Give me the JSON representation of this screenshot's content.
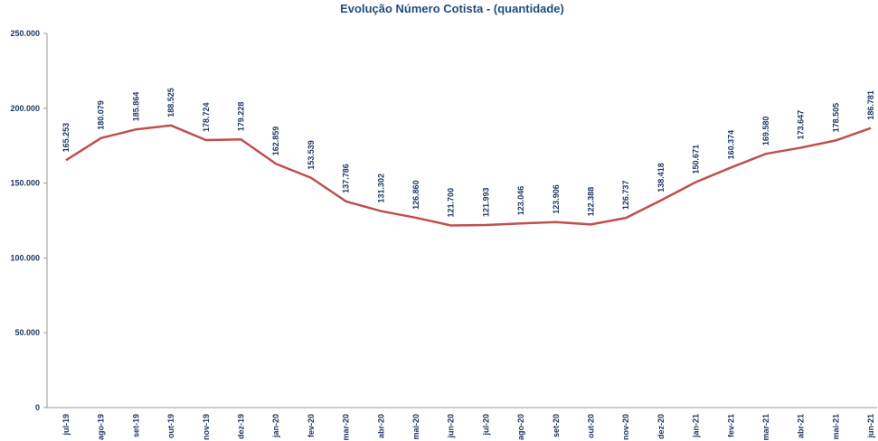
{
  "chart_data": {
    "type": "line",
    "title": "Evolução Número Cotista - (quantidade)",
    "categories": [
      "jul-19",
      "ago-19",
      "set-19",
      "out-19",
      "nov-19",
      "dez-19",
      "jan-20",
      "fev-20",
      "mar-20",
      "abr-20",
      "mai-20",
      "jun-20",
      "jul-20",
      "ago-20",
      "set-20",
      "out-20",
      "nov-20",
      "dez-20",
      "jan-21",
      "fev-21",
      "mar-21",
      "abr-21",
      "mai-21",
      "jun-21"
    ],
    "series": [
      {
        "name": "Número Cotista",
        "color": "#c0504d",
        "values": [
          165253,
          180079,
          185864,
          188525,
          178724,
          179228,
          162859,
          153539,
          137786,
          131302,
          126860,
          121700,
          121993,
          123046,
          123906,
          122388,
          126737,
          138418,
          150671,
          160374,
          169580,
          173647,
          178505,
          186781
        ],
        "value_labels": [
          "165.253",
          "180.079",
          "185.864",
          "188.525",
          "178.724",
          "179.228",
          "162.859",
          "153.539",
          "137.786",
          "131.302",
          "126.860",
          "121.700",
          "121.993",
          "123.046",
          "123.906",
          "122.388",
          "126.737",
          "138.418",
          "150.671",
          "160.374",
          "169.580",
          "173.647",
          "178.505",
          "186.781"
        ]
      }
    ],
    "ylim": [
      0,
      250000
    ],
    "yticks": [
      0,
      {
        "value": 50000,
        "label": "50.000"
      },
      {
        "value": 100000,
        "label": "100.000"
      },
      {
        "value": 150000,
        "label": "150.000"
      },
      {
        "value": 200000,
        "label": "200.000"
      },
      {
        "value": 250000,
        "label": "250.000"
      }
    ],
    "grid": false
  }
}
